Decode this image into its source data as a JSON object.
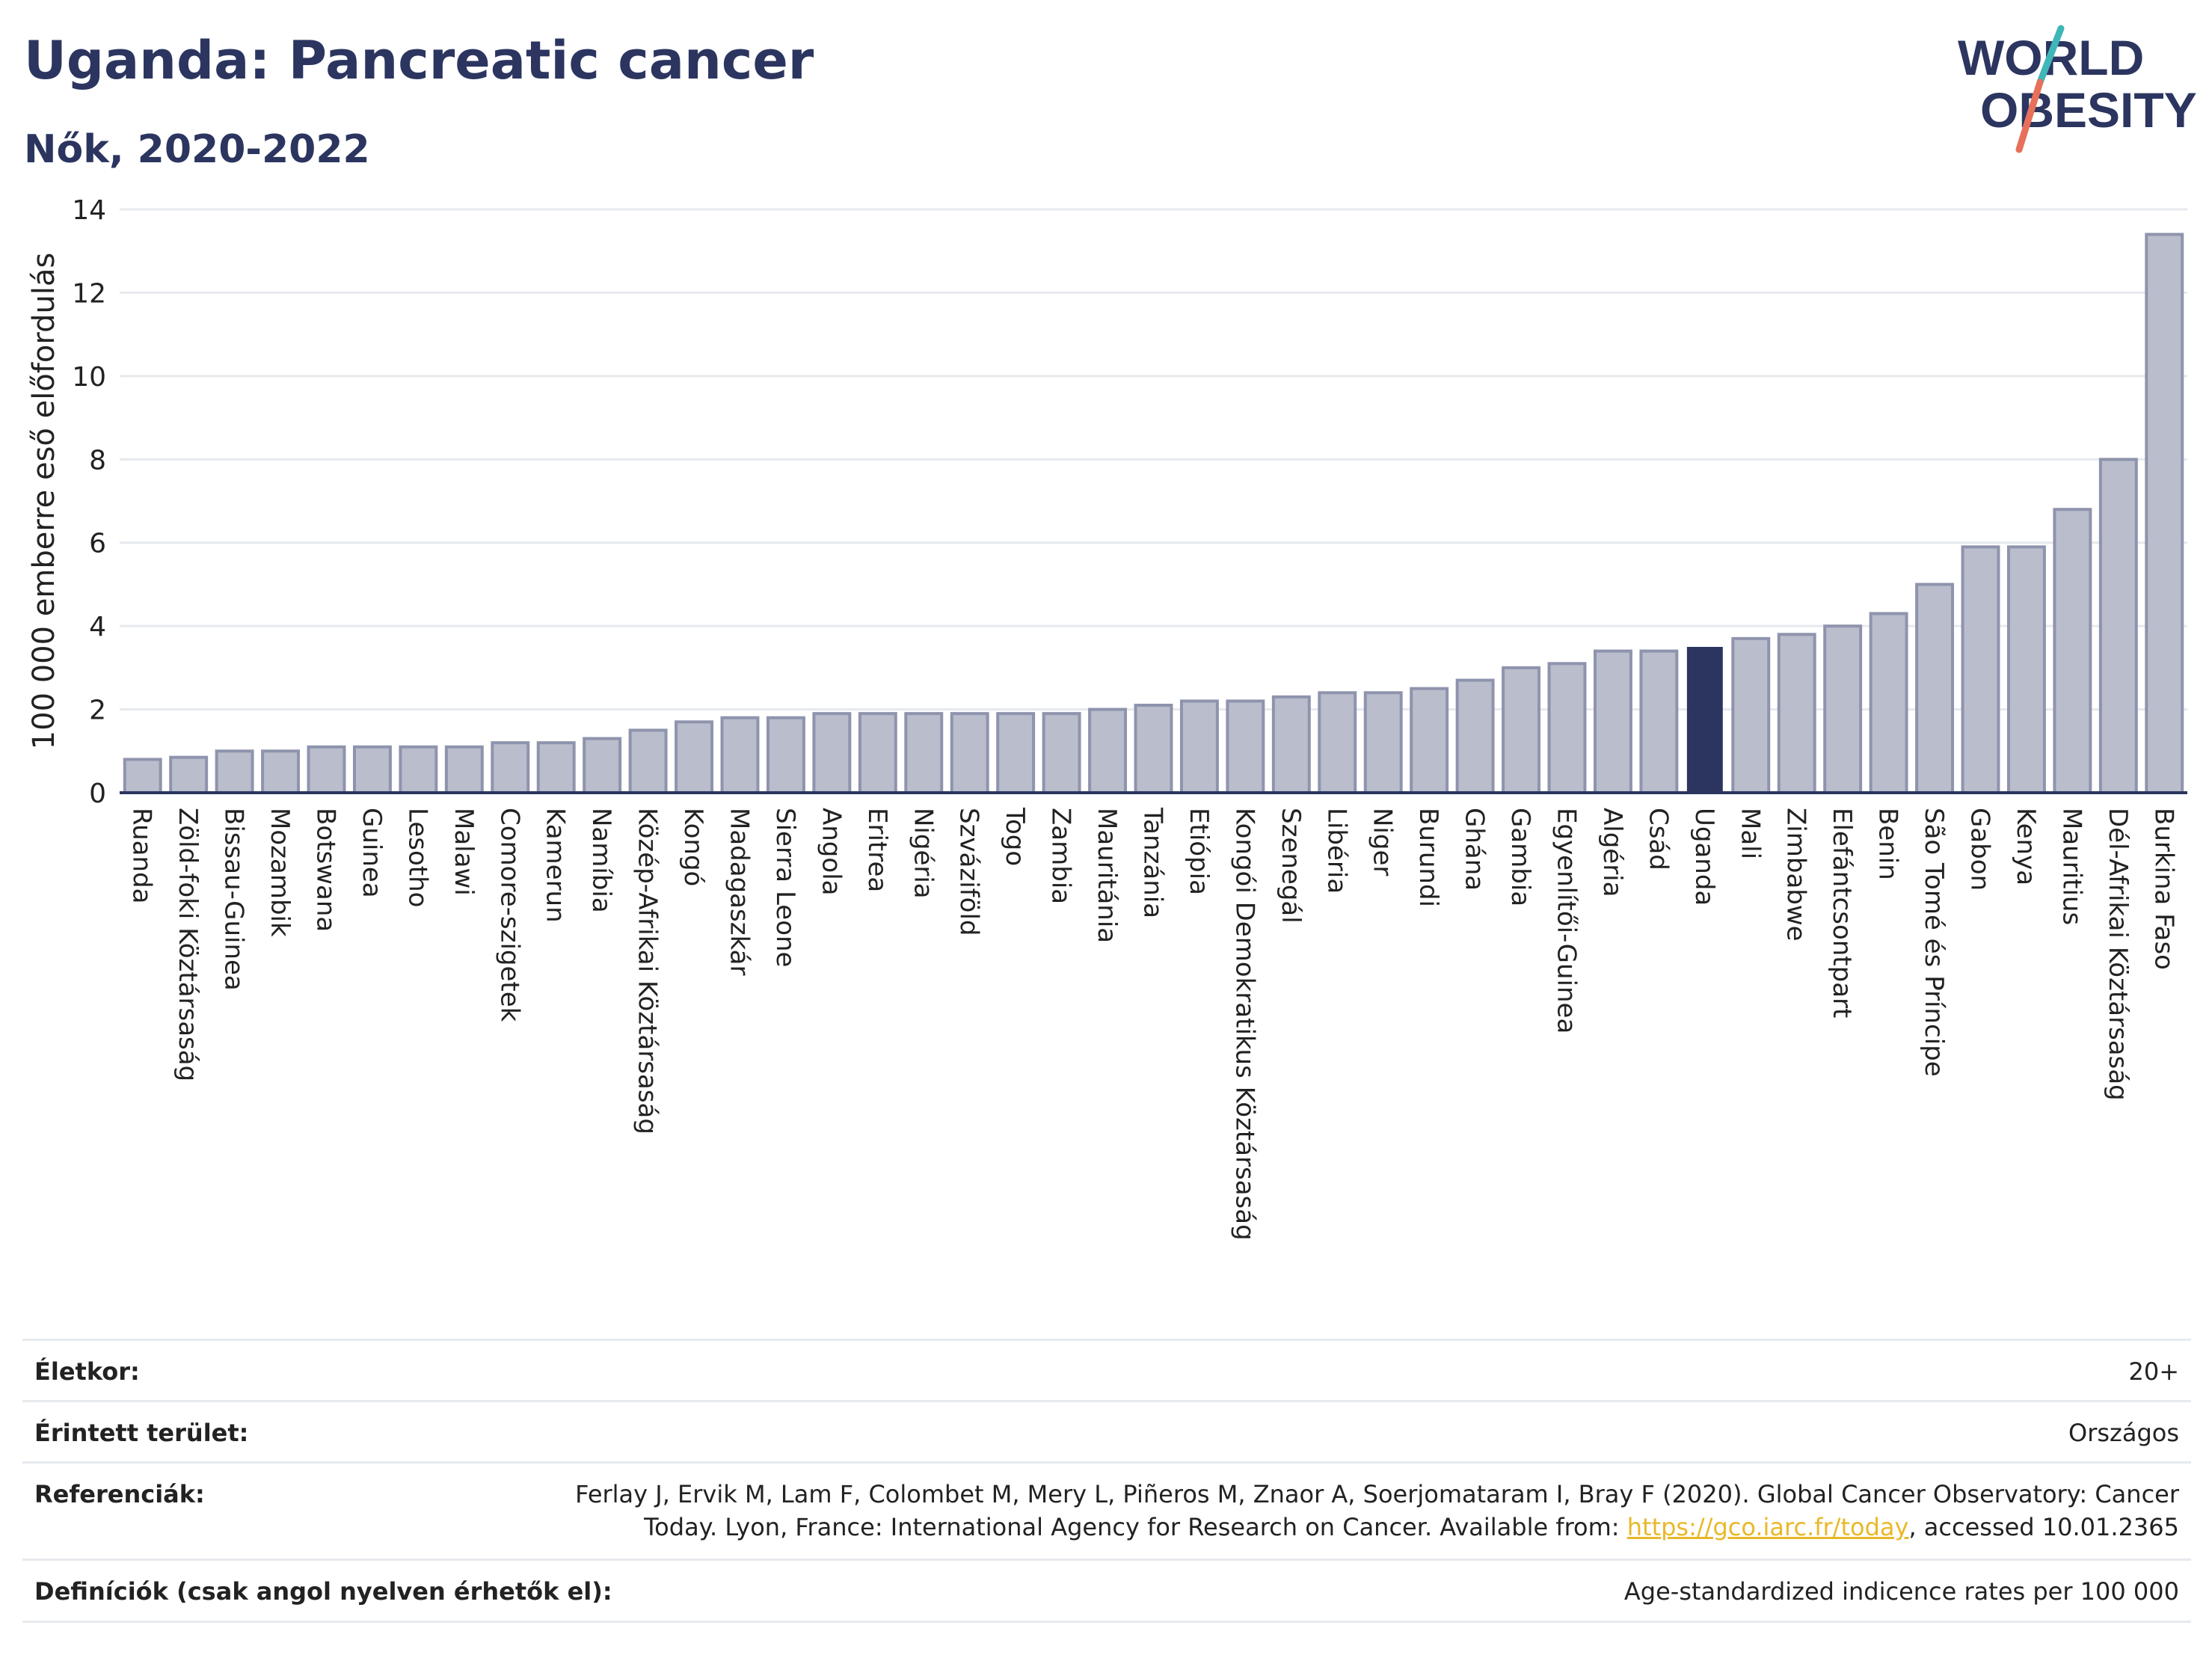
{
  "header": {
    "title": "Uganda: Pancreatic cancer",
    "subtitle": "Nők, 2020-2022"
  },
  "logo": {
    "line1": "WORLD",
    "line2": "OBESITY",
    "colors": {
      "text": "#2b355f",
      "slash_top": "#3fb6b8",
      "slash_bottom": "#e8705a"
    }
  },
  "chart_data": {
    "type": "bar",
    "ylabel": "100 000 emberre eső előfordulás",
    "ylim": [
      0,
      14
    ],
    "yticks": [
      0,
      2,
      4,
      6,
      8,
      10,
      12,
      14
    ],
    "grid": true,
    "highlight": "Uganda",
    "colors": {
      "bar": "#b9bdcc",
      "bar_border": "#8f94ad",
      "highlight": "#2b355f",
      "grid": "#e6e9ee"
    },
    "categories": [
      "Ruanda",
      "Zöld-foki Köztársaság",
      "Bissau-Guinea",
      "Mozambik",
      "Botswana",
      "Guinea",
      "Lesotho",
      "Malawi",
      "Comore-szigetek",
      "Kamerun",
      "Namíbia",
      "Közép-Afrikai Köztársaság",
      "Kongó",
      "Madagaszkár",
      "Sierra Leone",
      "Angola",
      "Eritrea",
      "Nigéria",
      "Szváziföld",
      "Togo",
      "Zambia",
      "Mauritánia",
      "Tanzánia",
      "Etiópia",
      "Kongói Demokratikus Köztársaság",
      "Szenegál",
      "Libéria",
      "Niger",
      "Burundi",
      "Ghána",
      "Gambia",
      "Egyenlítői-Guinea",
      "Algéria",
      "Csád",
      "Uganda",
      "Mali",
      "Zimbabwe",
      "Elefántcsontpart",
      "Benin",
      "São Tomé és Príncipe",
      "Gabon",
      "Kenya",
      "Mauritius",
      "Dél-Afrikai Köztársaság",
      "Burkina Faso"
    ],
    "values": [
      0.8,
      0.85,
      1.0,
      1.0,
      1.1,
      1.1,
      1.1,
      1.1,
      1.2,
      1.2,
      1.3,
      1.5,
      1.7,
      1.8,
      1.8,
      1.9,
      1.9,
      1.9,
      1.9,
      1.9,
      1.9,
      2.0,
      2.1,
      2.2,
      2.2,
      2.3,
      2.4,
      2.4,
      2.5,
      2.7,
      3.0,
      3.1,
      3.4,
      3.4,
      3.5,
      3.7,
      3.8,
      4.0,
      4.3,
      5.0,
      5.9,
      5.9,
      6.8,
      8.0,
      13.4
    ]
  },
  "info": {
    "age_label": "Életkor:",
    "age_value": "20+",
    "area_label": "Érintett terület:",
    "area_value": "Országos",
    "ref_label": "Referenciák:",
    "ref_line1": "Ferlay J, Ervik M, Lam F, Colombet M, Mery L, Piñeros M, Znaor A, Soerjomataram I, Bray F (2020). Global Cancer Observatory: Cancer",
    "ref_line2_pre": "Today. Lyon, France: International Agency for Research on Cancer. Available from: ",
    "ref_link": "https://gco.iarc.fr/today",
    "ref_line2_post": ", accessed 10.01.2365",
    "def_label": "Definíciók (csak angol nyelven érhetők el):",
    "def_value": "Age-standardized indicence rates per 100 000"
  }
}
